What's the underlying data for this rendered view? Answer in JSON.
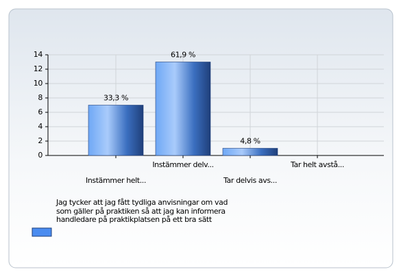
{
  "chart_data": {
    "type": "bar",
    "categories": [
      "Instämmer helt...",
      "Instämmer delv...",
      "Tar delvis avs...",
      "Tar helt avstå..."
    ],
    "series": [
      {
        "name": "Jag tycker att jag fått tydliga anvisningar om vad som gäller på praktiken så att jag kan informera handledare på praktikplatsen på ett bra sätt",
        "color": "#4a8cf0",
        "values": [
          7,
          13,
          1,
          0
        ],
        "value_labels": [
          "33,3 %",
          "61,9 %",
          "4,8 %",
          null
        ]
      }
    ],
    "ylim": [
      0,
      14
    ],
    "yticks": [
      0,
      2,
      4,
      6,
      8,
      10,
      12,
      14
    ],
    "grid": true
  }
}
